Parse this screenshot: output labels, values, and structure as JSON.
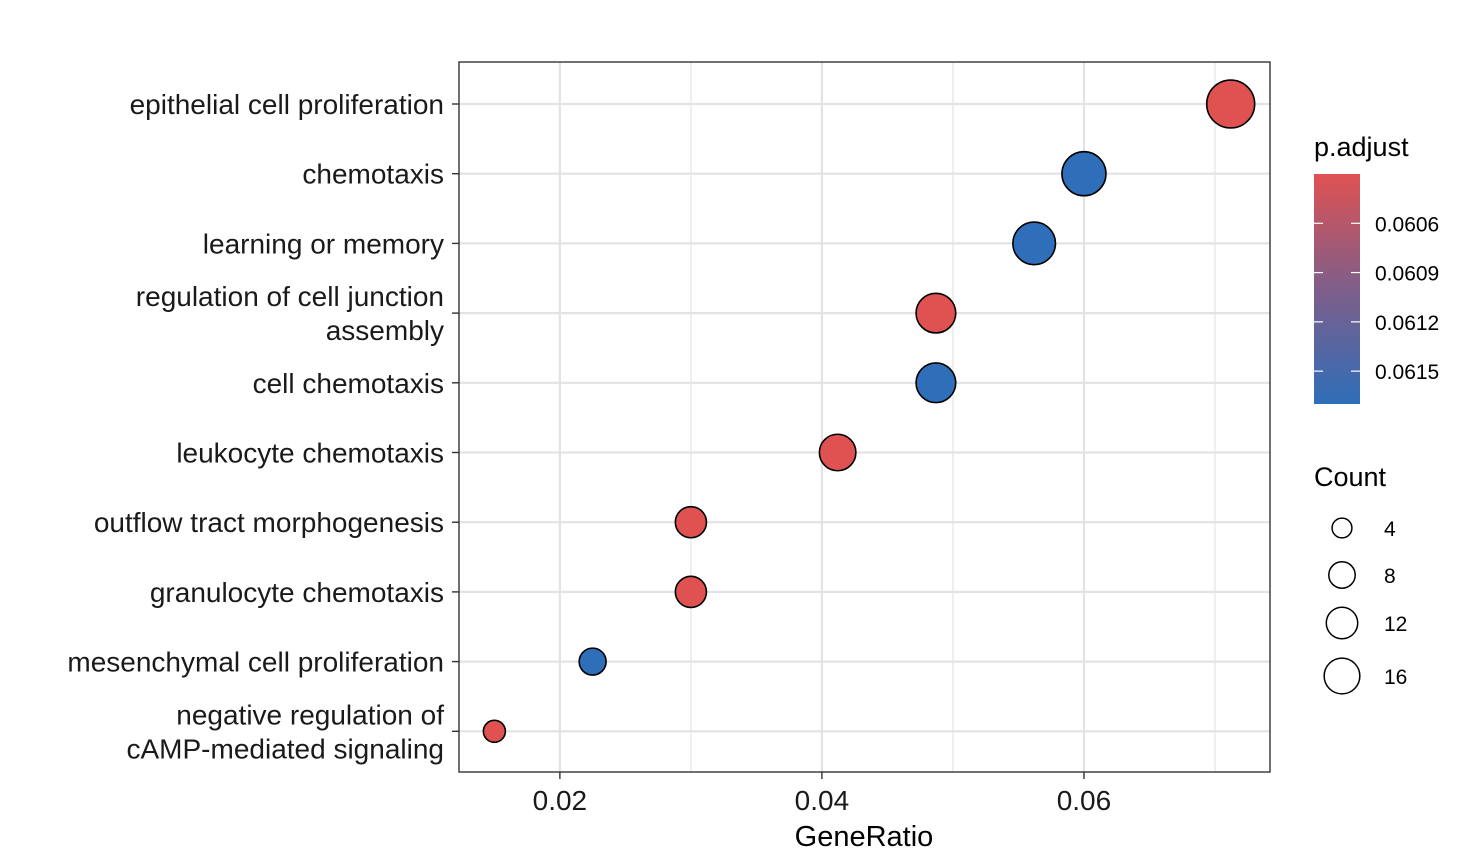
{
  "chart_data": {
    "type": "scatter",
    "xlabel": "GeneRatio",
    "ylabel": "",
    "xlim": [
      0.0123,
      0.0742
    ],
    "x_ticks": [
      0.02,
      0.04,
      0.06
    ],
    "x_tick_labels": [
      "0.02",
      "0.04",
      "0.06"
    ],
    "grid": true,
    "categories": [
      [
        "epithelial cell proliferation"
      ],
      [
        "chemotaxis"
      ],
      [
        "learning or memory"
      ],
      [
        "regulation of cell junction",
        "assembly"
      ],
      [
        "cell chemotaxis"
      ],
      [
        "leukocyte chemotaxis"
      ],
      [
        "outflow tract morphogenesis"
      ],
      [
        "granulocyte chemotaxis"
      ],
      [
        "mesenchymal cell proliferation"
      ],
      [
        "negative regulation of",
        "cAMP-mediated signaling"
      ]
    ],
    "points": [
      {
        "gene_ratio": 0.0712,
        "count": 19,
        "p_adjust": 0.0603
      },
      {
        "gene_ratio": 0.06,
        "count": 16,
        "p_adjust": 0.0617
      },
      {
        "gene_ratio": 0.0562,
        "count": 15,
        "p_adjust": 0.0617
      },
      {
        "gene_ratio": 0.0487,
        "count": 13,
        "p_adjust": 0.0603
      },
      {
        "gene_ratio": 0.0487,
        "count": 13,
        "p_adjust": 0.0617
      },
      {
        "gene_ratio": 0.0412,
        "count": 11,
        "p_adjust": 0.0603
      },
      {
        "gene_ratio": 0.03,
        "count": 8,
        "p_adjust": 0.0603
      },
      {
        "gene_ratio": 0.03,
        "count": 8,
        "p_adjust": 0.0603
      },
      {
        "gene_ratio": 0.0225,
        "count": 6,
        "p_adjust": 0.0617
      },
      {
        "gene_ratio": 0.015,
        "count": 4,
        "p_adjust": 0.0603
      }
    ],
    "color_legend": {
      "title": "p.adjust",
      "ticks": [
        0.0606,
        0.0609,
        0.0612,
        0.0615
      ],
      "tick_labels": [
        "0.0606",
        "0.0609",
        "0.0612",
        "0.0615"
      ],
      "range": [
        0.0603,
        0.0617
      ],
      "low_color": "#e05252",
      "mid_color": "#7f5e8a",
      "high_color": "#2f6eb8"
    },
    "size_legend": {
      "title": "Count",
      "values": [
        4,
        8,
        12,
        16
      ],
      "labels": [
        "4",
        "8",
        "12",
        "16"
      ]
    }
  }
}
